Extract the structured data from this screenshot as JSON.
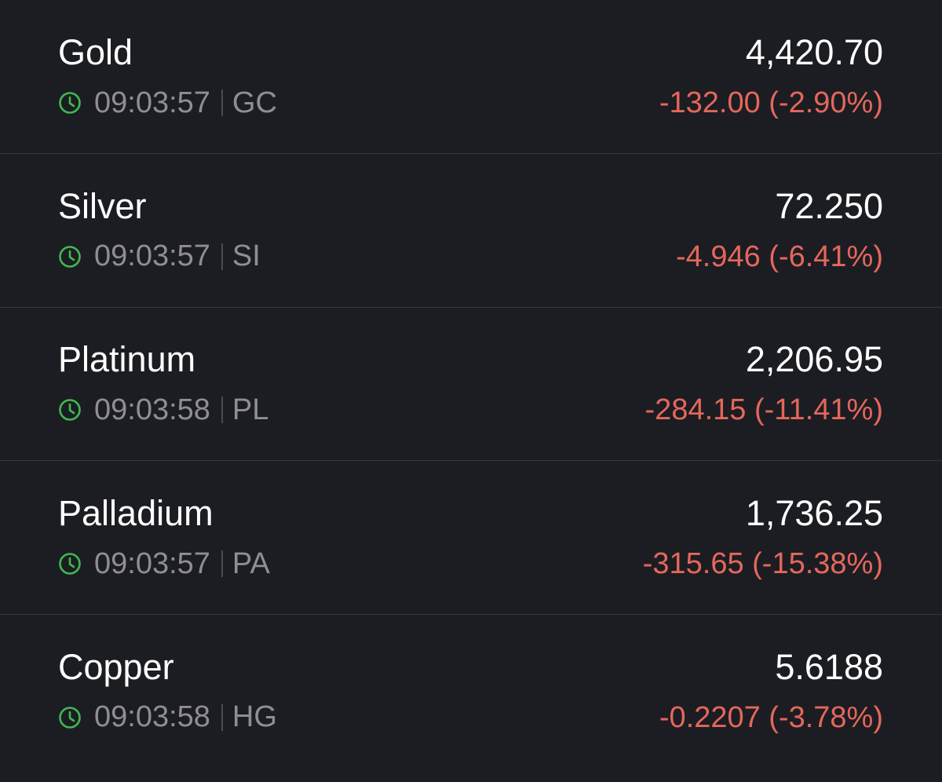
{
  "quotes": [
    {
      "name": "Gold",
      "time": "09:03:57",
      "symbol": "GC",
      "price": "4,420.70",
      "change": "-132.00 (-2.90%)"
    },
    {
      "name": "Silver",
      "time": "09:03:57",
      "symbol": "SI",
      "price": "72.250",
      "change": "-4.946 (-6.41%)"
    },
    {
      "name": "Platinum",
      "time": "09:03:58",
      "symbol": "PL",
      "price": "2,206.95",
      "change": "-284.15 (-11.41%)"
    },
    {
      "name": "Palladium",
      "time": "09:03:57",
      "symbol": "PA",
      "price": "1,736.25",
      "change": "-315.65 (-15.38%)"
    },
    {
      "name": "Copper",
      "time": "09:03:58",
      "symbol": "HG",
      "price": "5.6188",
      "change": "-0.2207 (-3.78%)"
    }
  ]
}
